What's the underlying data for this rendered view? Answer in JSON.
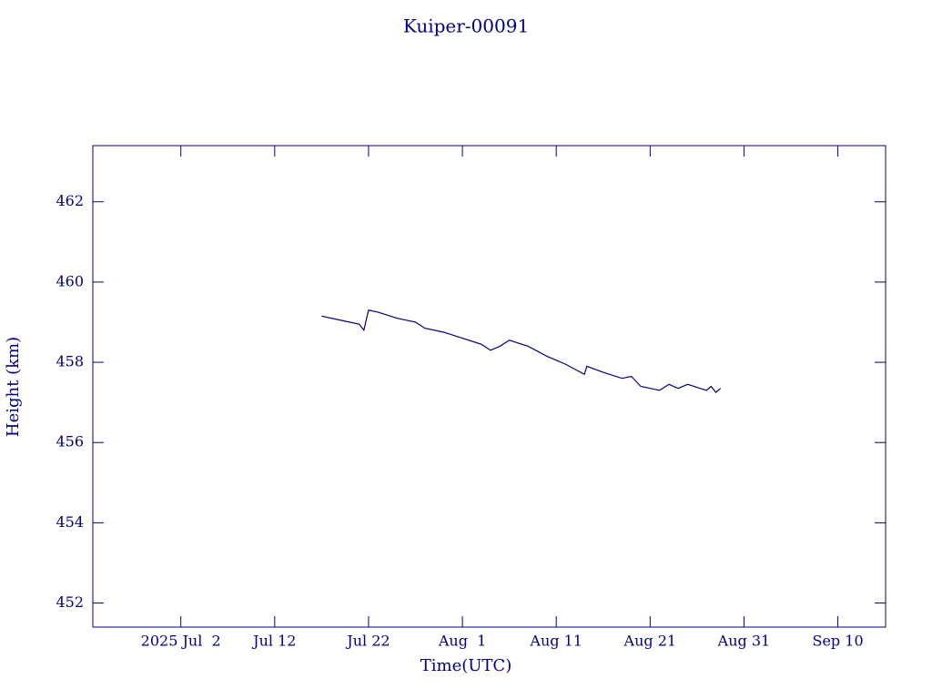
{
  "chart_data": {
    "type": "line",
    "title": "Kuiper-00091",
    "x_label": "Time(UTC)",
    "y_label": "Height (km)",
    "x": [
      "2025-07-17T00:00",
      "2025-07-19T00:00",
      "2025-07-21T00:00",
      "2025-07-21T12:00",
      "2025-07-22T00:00",
      "2025-07-23T00:00",
      "2025-07-25T00:00",
      "2025-07-27T00:00",
      "2025-07-28T00:00",
      "2025-07-30T00:00",
      "2025-08-01T00:00",
      "2025-08-03T00:00",
      "2025-08-04T00:00",
      "2025-08-05T00:00",
      "2025-08-06T00:00",
      "2025-08-08T00:00",
      "2025-08-10T00:00",
      "2025-08-11T00:00",
      "2025-08-12T00:00",
      "2025-08-14T00:00",
      "2025-08-14T06:00",
      "2025-08-16T00:00",
      "2025-08-18T00:00",
      "2025-08-19T00:00",
      "2025-08-20T00:00",
      "2025-08-22T00:00",
      "2025-08-23T00:00",
      "2025-08-24T00:00",
      "2025-08-25T00:00",
      "2025-08-27T00:00",
      "2025-08-27T12:00",
      "2025-08-28T00:00",
      "2025-08-28T12:00"
    ],
    "series": [
      {
        "name": "Height",
        "color": "#000080",
        "values": [
          459.15,
          459.05,
          458.95,
          458.8,
          459.3,
          459.25,
          459.1,
          459.0,
          458.85,
          458.75,
          458.6,
          458.45,
          458.3,
          458.4,
          458.55,
          458.4,
          458.15,
          458.05,
          457.95,
          457.7,
          457.9,
          457.75,
          457.6,
          457.65,
          457.4,
          457.3,
          457.45,
          457.35,
          457.45,
          457.3,
          457.4,
          457.25,
          457.35
        ]
      }
    ],
    "xlim": [
      "2025-06-22T15:00",
      "2025-09-15T02:00"
    ],
    "xticks": [
      {
        "value": "2025-07-02T00:00",
        "label": "2025 Jul  2"
      },
      {
        "value": "2025-07-12T00:00",
        "label": "Jul 12"
      },
      {
        "value": "2025-07-22T00:00",
        "label": "Jul 22"
      },
      {
        "value": "2025-08-01T00:00",
        "label": "Aug  1"
      },
      {
        "value": "2025-08-11T00:00",
        "label": "Aug 11"
      },
      {
        "value": "2025-08-21T00:00",
        "label": "Aug 21"
      },
      {
        "value": "2025-08-31T00:00",
        "label": "Aug 31"
      },
      {
        "value": "2025-09-10T00:00",
        "label": "Sep 10"
      }
    ],
    "ylim": [
      451.4,
      463.4
    ],
    "yticks": [
      452,
      454,
      456,
      458,
      460,
      462
    ]
  }
}
